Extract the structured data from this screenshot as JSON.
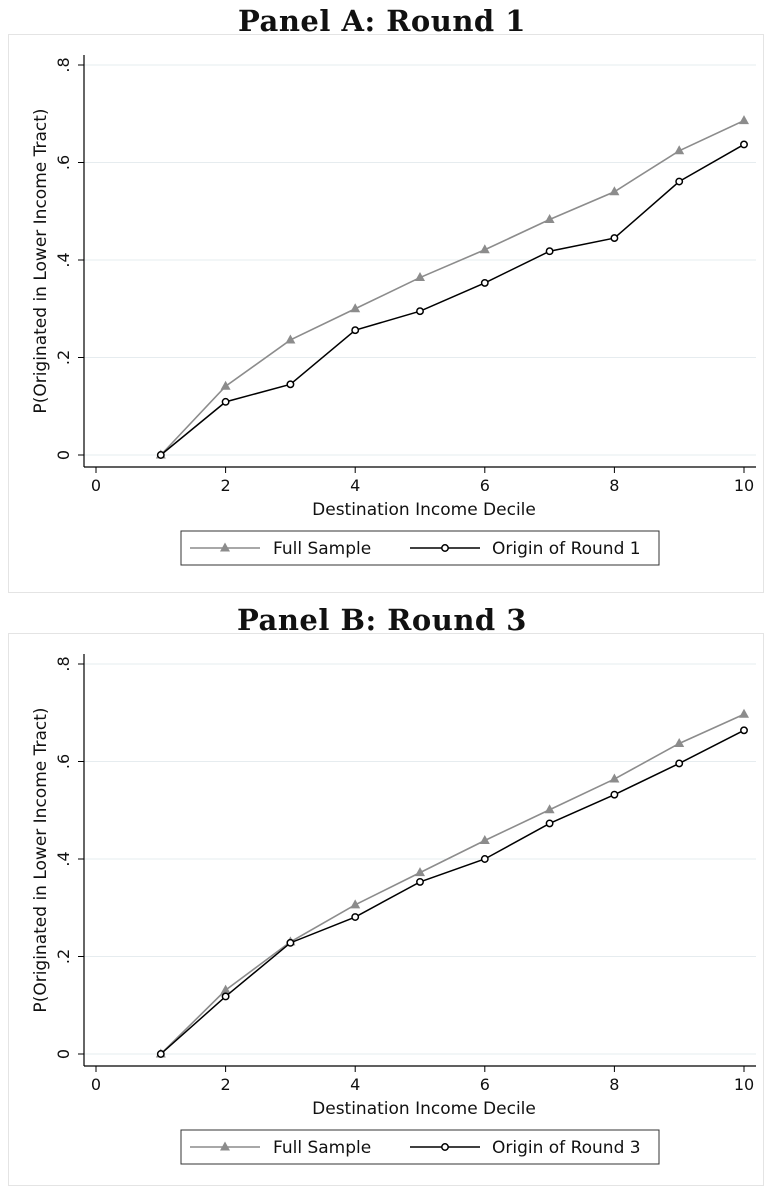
{
  "chart_data": [
    {
      "type": "line",
      "title": "Panel A: Round 1",
      "xlabel": "Destination Income Decile",
      "ylabel": "P(Originated in Lower Income Tract)",
      "xlim": [
        0,
        10
      ],
      "ylim": [
        0,
        0.8
      ],
      "xticks": [
        "0",
        "2",
        "4",
        "6",
        "8",
        "10"
      ],
      "yticks": [
        "0",
        ".2",
        ".4",
        ".6",
        ".8"
      ],
      "grid": true,
      "legend_position": "bottom",
      "x": [
        1,
        2,
        3,
        4,
        5,
        6,
        7,
        8,
        9,
        10
      ],
      "series": [
        {
          "name": "Full Sample",
          "color": "#8c8c8c",
          "marker": "triangle",
          "values": [
            0.0,
            0.141,
            0.236,
            0.3,
            0.364,
            0.421,
            0.483,
            0.54,
            0.624,
            0.686
          ]
        },
        {
          "name": "Origin of Round 1",
          "color": "#000000",
          "marker": "circle",
          "values": [
            0.0,
            0.109,
            0.145,
            0.256,
            0.295,
            0.353,
            0.418,
            0.445,
            0.561,
            0.637
          ]
        }
      ]
    },
    {
      "type": "line",
      "title": "Panel B: Round 3",
      "xlabel": "Destination Income Decile",
      "ylabel": "P(Originated in Lower Income Tract)",
      "xlim": [
        0,
        10
      ],
      "ylim": [
        0,
        0.8
      ],
      "xticks": [
        "0",
        "2",
        "4",
        "6",
        "8",
        "10"
      ],
      "yticks": [
        "0",
        ".2",
        ".4",
        ".6",
        ".8"
      ],
      "grid": true,
      "legend_position": "bottom",
      "x": [
        1,
        2,
        3,
        4,
        5,
        6,
        7,
        8,
        9,
        10
      ],
      "series": [
        {
          "name": "Full Sample",
          "color": "#8c8c8c",
          "marker": "triangle",
          "values": [
            0.0,
            0.131,
            0.23,
            0.306,
            0.372,
            0.438,
            0.501,
            0.564,
            0.637,
            0.697
          ]
        },
        {
          "name": "Origin of Round 3",
          "color": "#000000",
          "marker": "circle",
          "values": [
            0.0,
            0.118,
            0.228,
            0.281,
            0.353,
            0.4,
            0.473,
            0.532,
            0.596,
            0.664
          ]
        }
      ]
    }
  ]
}
